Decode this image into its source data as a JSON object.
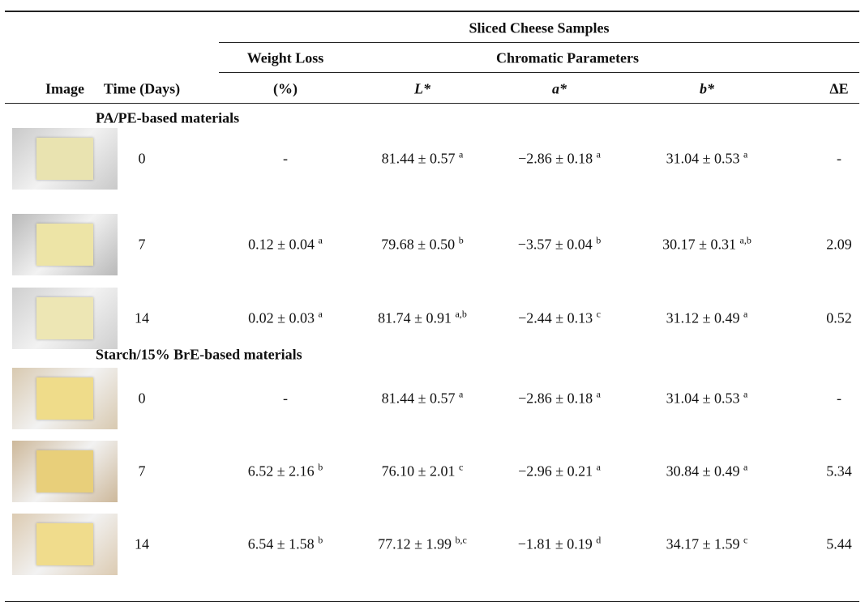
{
  "table": {
    "spanner": "Sliced Cheese Samples",
    "subheaders": [
      "Weight Loss",
      "Chromatic Parameters"
    ],
    "columns": [
      "Image",
      "Time (Days)",
      "(%)",
      "L*",
      "a*",
      "b*",
      "ΔE"
    ],
    "groups": [
      {
        "label": "PA/PE-based materials",
        "rows": [
          [
            "0",
            "-",
            {
              "text": "81.44 ± 0.57",
              "sup": "a"
            },
            {
              "text": "−2.86 ± 0.18",
              "sup": "a"
            },
            {
              "text": "31.04 ± 0.53",
              "sup": "a"
            },
            "-"
          ],
          [
            "7",
            {
              "text": "0.12 ± 0.04",
              "sup": "a"
            },
            {
              "text": "79.68 ± 0.50",
              "sup": "b"
            },
            {
              "text": "−3.57 ± 0.04",
              "sup": "b"
            },
            {
              "text": "30.17 ± 0.31",
              "sup": "a,b"
            },
            "2.09"
          ],
          [
            "14",
            {
              "text": "0.02 ± 0.03",
              "sup": "a"
            },
            {
              "text": "81.74 ± 0.91",
              "sup": "a,b"
            },
            {
              "text": "−2.44 ± 0.13",
              "sup": "c"
            },
            {
              "text": "31.12 ± 0.49",
              "sup": "a"
            },
            "0.52"
          ]
        ]
      },
      {
        "label": "Starch/15% BrE-based materials",
        "rows": [
          [
            "0",
            "-",
            {
              "text": "81.44 ± 0.57",
              "sup": "a"
            },
            {
              "text": "−2.86 ± 0.18",
              "sup": "a"
            },
            {
              "text": "31.04 ± 0.53",
              "sup": "a"
            },
            "-"
          ],
          [
            "7",
            {
              "text": "6.52 ± 2.16",
              "sup": "b"
            },
            {
              "text": "76.10 ± 2.01",
              "sup": "c"
            },
            {
              "text": "−2.96 ± 0.21",
              "sup": "a"
            },
            {
              "text": "30.84 ± 0.49",
              "sup": "a"
            },
            "5.34"
          ],
          [
            "14",
            {
              "text": "6.54 ± 1.58",
              "sup": "b"
            },
            {
              "text": "77.12 ± 1.99",
              "sup": "b,c"
            },
            {
              "text": "−1.81 ± 0.19",
              "sup": "d"
            },
            {
              "text": "34.17 ± 1.59",
              "sup": "c"
            },
            "5.44"
          ]
        ]
      }
    ]
  }
}
